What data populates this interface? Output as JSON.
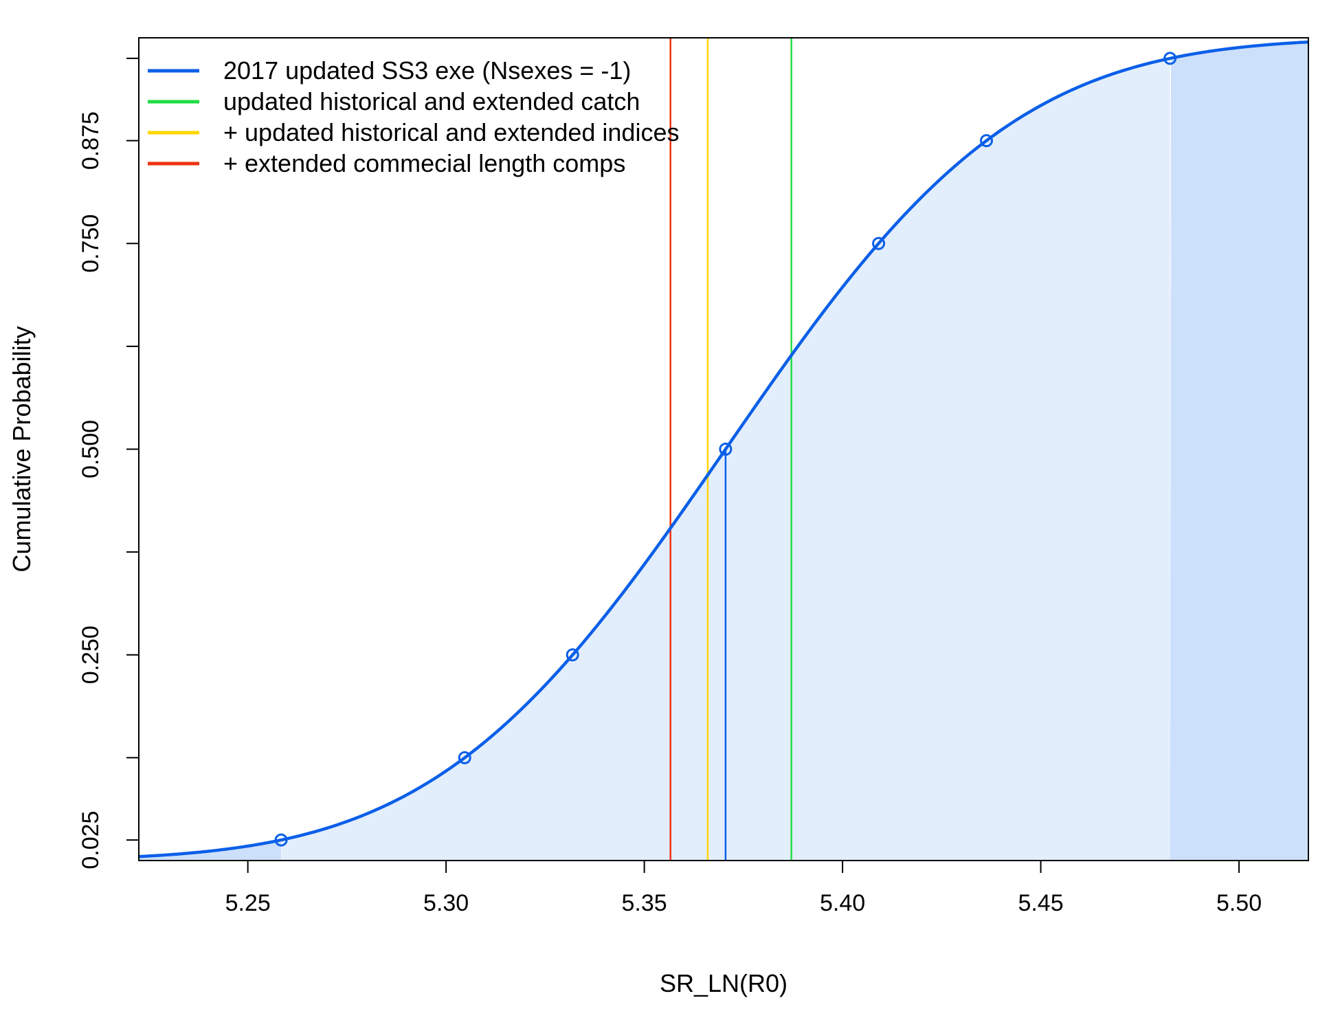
{
  "chart_data": {
    "type": "line",
    "title": "",
    "xlabel": "SR_LN(R0)",
    "ylabel": "Cumulative Probability",
    "xlim": [
      5.2225,
      5.5175
    ],
    "ylim": [
      0.0,
      1.0
    ],
    "x_ticks": [
      {
        "value": 5.25,
        "label": "5.25"
      },
      {
        "value": 5.3,
        "label": "5.30"
      },
      {
        "value": 5.35,
        "label": "5.35"
      },
      {
        "value": 5.4,
        "label": "5.40"
      },
      {
        "value": 5.45,
        "label": "5.45"
      },
      {
        "value": 5.5,
        "label": "5.50"
      }
    ],
    "y_ticks": [
      {
        "value": 0.025,
        "label": "0.025"
      },
      {
        "value": 0.125,
        "label": ""
      },
      {
        "value": 0.25,
        "label": "0.250"
      },
      {
        "value": 0.375,
        "label": ""
      },
      {
        "value": 0.5,
        "label": "0.500"
      },
      {
        "value": 0.625,
        "label": ""
      },
      {
        "value": 0.75,
        "label": "0.750"
      },
      {
        "value": 0.875,
        "label": "0.875"
      },
      {
        "value": 0.975,
        "label": ""
      }
    ],
    "grid": false,
    "legend_position": "top-left",
    "distribution": {
      "name": "2017 updated SS3 exe (Nsexes = -1)",
      "mean": 5.3705,
      "sd": 0.0572,
      "color": "#0B5FE8",
      "quantile_points": [
        {
          "x": 5.2584,
          "y": 0.025
        },
        {
          "x": 5.3047,
          "y": 0.125
        },
        {
          "x": 5.3319,
          "y": 0.25
        },
        {
          "x": 5.3705,
          "y": 0.5
        },
        {
          "x": 5.4091,
          "y": 0.75
        },
        {
          "x": 5.4363,
          "y": 0.875
        },
        {
          "x": 5.4826,
          "y": 0.975
        }
      ],
      "median_x": 5.3705,
      "outer_interval": [
        5.2584,
        5.4826
      ]
    },
    "vertical_lines": [
      {
        "name": "updated historical and extended catch",
        "x": 5.3871,
        "color": "#22DD44"
      },
      {
        "name": "+ updated historical and extended indices",
        "x": 5.366,
        "color": "#FFD700"
      },
      {
        "name": "+ extended commecial length comps",
        "x": 5.3566,
        "color": "#EE3311"
      }
    ],
    "legend": [
      {
        "label": "2017 updated SS3 exe (Nsexes = -1)",
        "color": "#0B5FE8"
      },
      {
        "label": "updated historical and extended catch",
        "color": "#22DD44"
      },
      {
        "label": "+ updated historical and extended indices",
        "color": "#FFD700"
      },
      {
        "label": "+ extended commecial length comps",
        "color": "#EE3311"
      }
    ]
  }
}
